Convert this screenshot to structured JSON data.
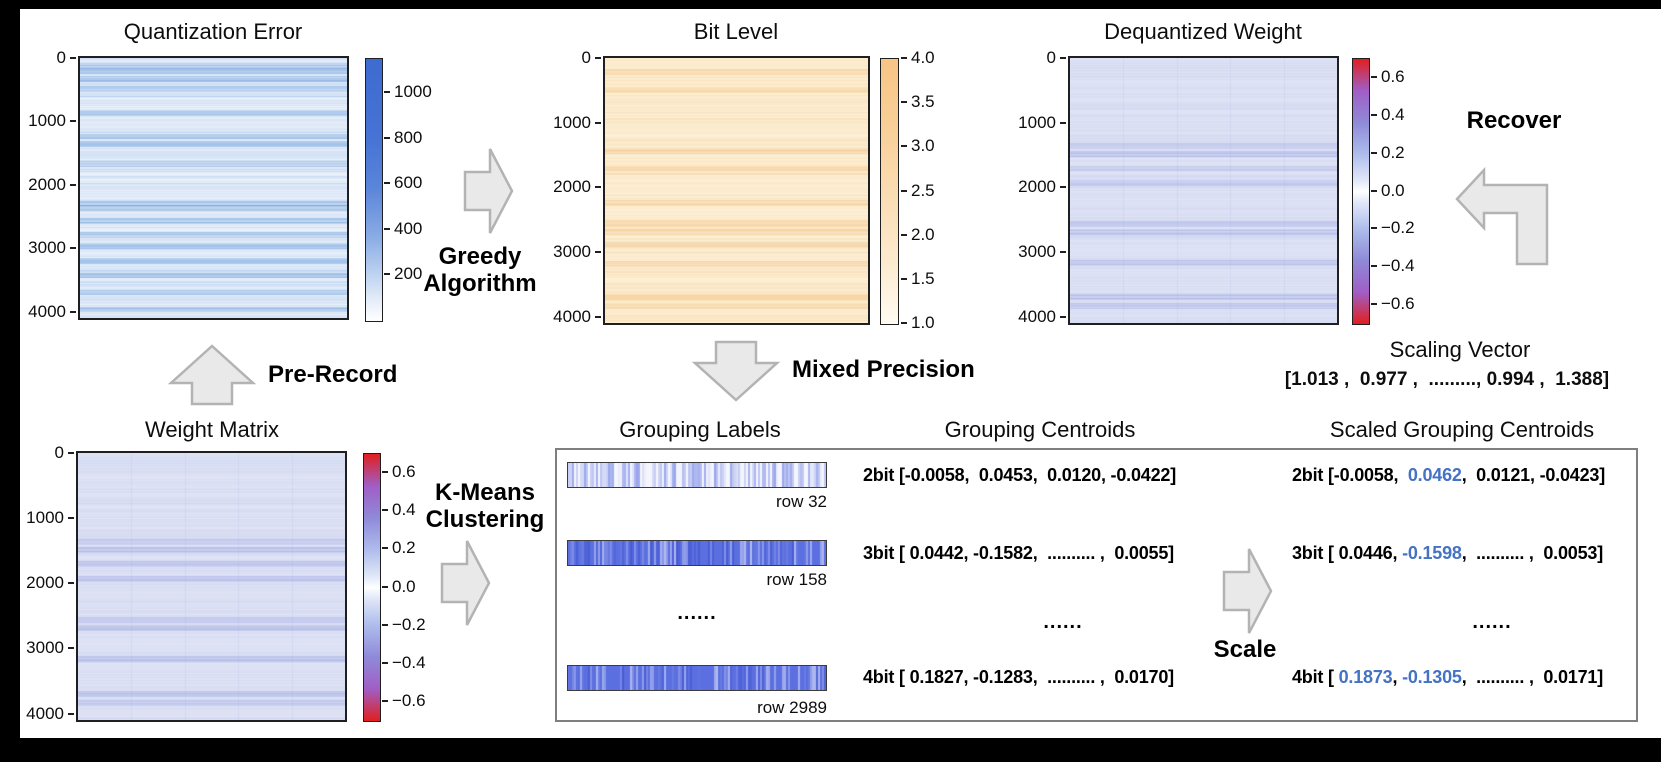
{
  "colors": {
    "accent_blue": "#4472c4",
    "arrow_fill": "#e9e9e9",
    "arrow_stroke": "#b3b3b3",
    "box_border": "#7f7f7f"
  },
  "top": {
    "qe": {
      "title": "Quantization Error",
      "yticks": [
        "0",
        "1000",
        "2000",
        "3000",
        "4000"
      ],
      "cticks": [
        "1000",
        "800",
        "600",
        "400",
        "200"
      ]
    },
    "bit": {
      "title": "Bit Level",
      "yticks": [
        "0",
        "1000",
        "2000",
        "3000",
        "4000"
      ],
      "cticks": [
        "4.0",
        "3.5",
        "3.0",
        "2.5",
        "2.0",
        "1.5",
        "1.0"
      ]
    },
    "dw": {
      "title": "Dequantized Weight",
      "yticks": [
        "0",
        "1000",
        "2000",
        "3000",
        "4000"
      ],
      "cticks": [
        "0.6",
        "0.4",
        "0.2",
        "0.0",
        "−0.2",
        "−0.4",
        "−0.6"
      ]
    }
  },
  "bottom": {
    "wm": {
      "title": "Weight Matrix",
      "yticks": [
        "0",
        "1000",
        "2000",
        "3000",
        "4000"
      ],
      "cticks": [
        "0.6",
        "0.4",
        "0.2",
        "0.0",
        "−0.2",
        "−0.4",
        "−0.6"
      ]
    }
  },
  "arrows": {
    "greedy_line1": "Greedy",
    "greedy_line2": "Algorithm",
    "pre_record": "Pre-Record",
    "mixed_precision": "Mixed Precision",
    "recover": "Recover",
    "kmeans_line1": "K-Means",
    "kmeans_line2": "Clustering",
    "scale": "Scale"
  },
  "scaling_vector": {
    "title": "Scaling Vector",
    "values": "[1.013 ,  0.977 ,  ........., 0.994 ,  1.388]"
  },
  "group_box": {
    "labels_title": "Grouping Labels",
    "strip_rows": [
      "row 32",
      "row 158",
      "row 2989"
    ],
    "dots": "......",
    "centroids_title": "Grouping Centroids",
    "centroid_rows": [
      "2bit [-0.0058,  0.0453,  0.0120, -0.0422]",
      "3bit [ 0.0442, -0.1582,  .......... ,  0.0055]",
      "4bit [ 0.1827, -0.1283,  .......... ,  0.0170]"
    ],
    "scaled_title": "Scaled Grouping Centroids",
    "scaled_rows": {
      "r1": {
        "pre": "2bit [-0.0058,  ",
        "blue": "0.0462",
        "post": ",  0.0121, -0.0423]"
      },
      "r2": {
        "pre": "3bit [ 0.0446, ",
        "blue": "-0.1598",
        "post": ",  .......... ,  0.0053]"
      },
      "r3": {
        "pre": "4bit [ ",
        "blue1": "0.1873",
        "mid": ", ",
        "blue2": "-0.1305",
        "post": ",  .......... ,  0.0171]"
      }
    }
  },
  "textures": {
    "qe": {
      "base": "#eaf1fb",
      "stripe": "#5b93d8"
    },
    "bit": {
      "base": "#fdf0d6",
      "stripe": "#f0b873"
    },
    "wm": {
      "base": "#dfe3f5",
      "stripe": "#8d9ade"
    },
    "strip_light": {
      "base": "#f5f6fd",
      "stripe": "#5b6fe0"
    },
    "strip_dark": {
      "base": "#5b6fe0",
      "stripe": "#ffffff",
      "stripe2": "#3a4ecf"
    }
  }
}
